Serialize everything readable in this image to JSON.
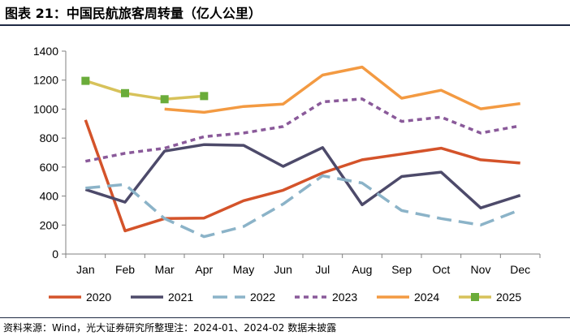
{
  "title": "图表 21：中国民航旅客周转量（亿人公里）",
  "source": "资料来源：Wind，光大证券研究所整理注：2024-01、2024-02 数据未披露",
  "chart_data": {
    "type": "line",
    "categories": [
      "Jan",
      "Feb",
      "Mar",
      "Apr",
      "May",
      "Jun",
      "Jul",
      "Aug",
      "Sep",
      "Oct",
      "Nov",
      "Dec"
    ],
    "ylim": [
      0,
      1400
    ],
    "yticks": [
      0,
      200,
      400,
      600,
      800,
      1000,
      1200,
      1400
    ],
    "grid": false,
    "legend_position": "bottom",
    "series": [
      {
        "name": "2020",
        "color": "#d4532a",
        "dash": "solid",
        "values": [
          925,
          160,
          245,
          248,
          368,
          440,
          560,
          650,
          690,
          730,
          650,
          628
        ]
      },
      {
        "name": "2021",
        "color": "#4d4a6a",
        "dash": "solid",
        "values": [
          445,
          358,
          710,
          755,
          750,
          605,
          735,
          340,
          535,
          565,
          318,
          405
        ]
      },
      {
        "name": "2022",
        "color": "#8bb3c8",
        "dash": "longdash",
        "values": [
          455,
          480,
          245,
          120,
          190,
          345,
          540,
          490,
          300,
          245,
          200,
          305
        ]
      },
      {
        "name": "2023",
        "color": "#8a5a9a",
        "dash": "dash",
        "values": [
          640,
          695,
          730,
          810,
          835,
          880,
          1050,
          1070,
          915,
          945,
          835,
          885
        ]
      },
      {
        "name": "2024",
        "color": "#f39a42",
        "dash": "solid",
        "values": [
          null,
          null,
          1000,
          978,
          1018,
          1035,
          1235,
          1290,
          1075,
          1130,
          1002,
          1038
        ]
      },
      {
        "name": "2025",
        "color": "#d7c25a",
        "dash": "solid",
        "marker": "square",
        "marker_color": "#6aac3a",
        "values": [
          1195,
          1110,
          1068,
          1090,
          null,
          null,
          null,
          null,
          null,
          null,
          null,
          null
        ]
      }
    ]
  }
}
